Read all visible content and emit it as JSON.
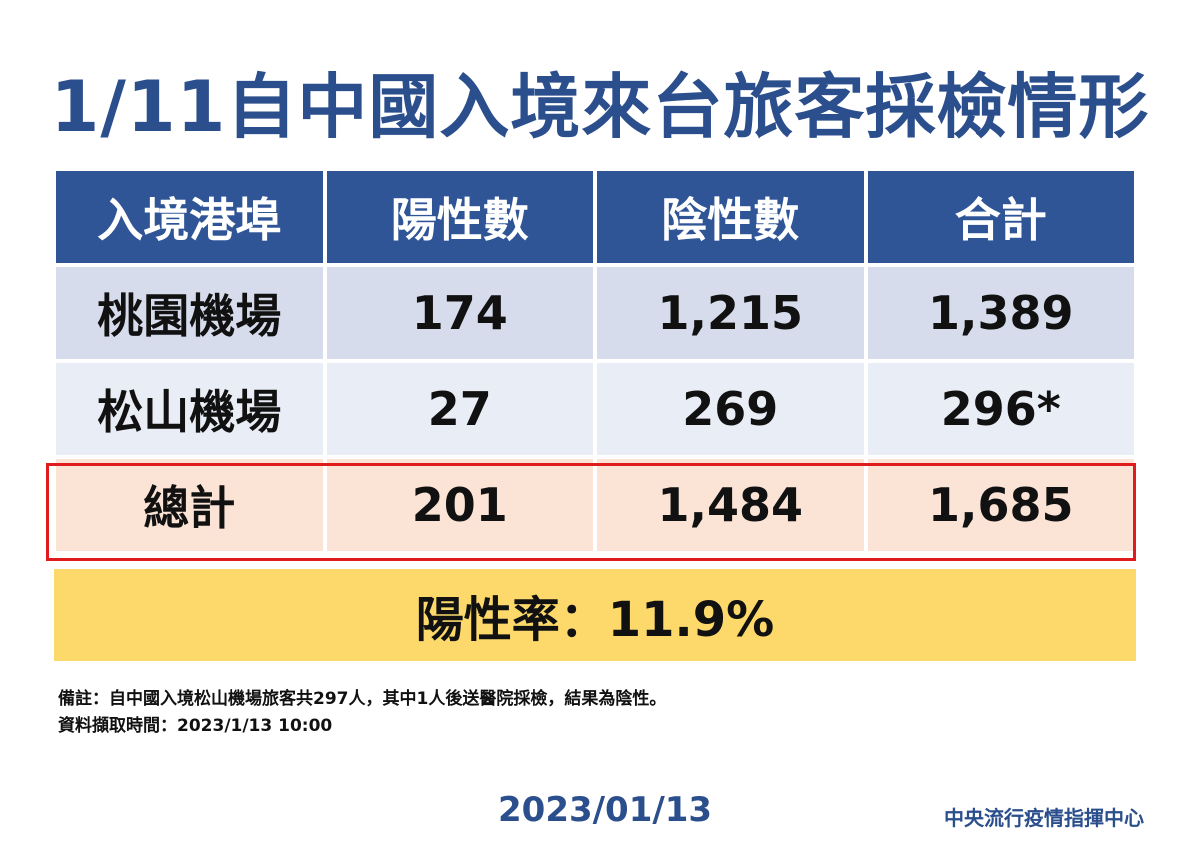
{
  "title": "1/11自中國入境來台旅客採檢情形",
  "table": {
    "headers": [
      "入境港埠",
      "陽性數",
      "陰性數",
      "合計"
    ],
    "rows": [
      [
        "桃園機場",
        "174",
        "1,215",
        "1,389"
      ],
      [
        "松山機場",
        "27",
        "269",
        "296*"
      ]
    ],
    "total": [
      "總計",
      "201",
      "1,484",
      "1,685"
    ]
  },
  "positive_rate": "陽性率：11.9%",
  "notes": [
    "備註：自中國入境松山機場旅客共297人，其中1人後送醫院採檢，結果為陰性。",
    "資料擷取時間：2023/1/13 10:00"
  ],
  "date": "2023/01/13",
  "organization": "中央流行疫情指揮中心",
  "colors": {
    "header_bg": "#2f5597",
    "title": "#2b4e8c",
    "row1_bg": "#d6dcec",
    "row2_bg": "#e9edf6",
    "total_bg": "#fbe3d6",
    "total_border": "#e01b1b",
    "rate_bg": "#fcd96a"
  }
}
